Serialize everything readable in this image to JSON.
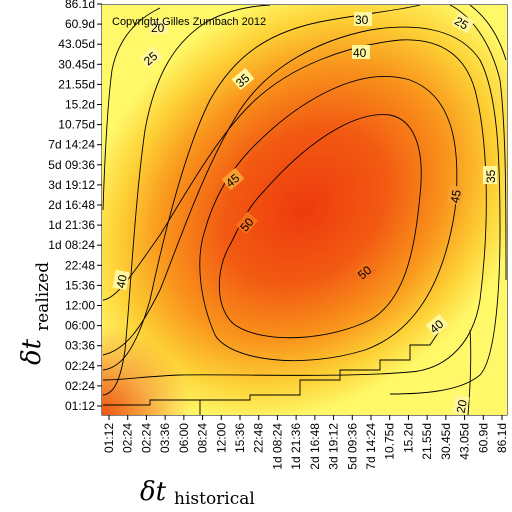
{
  "chart_data": {
    "type": "heatmap",
    "title": "",
    "copyright": "Copyright Gilles Zumbach 2012",
    "xlabel": {
      "main": "δt",
      "sub": "historical"
    },
    "ylabel": {
      "main": "δt",
      "sub": "realized"
    },
    "x_ticks": [
      "01:12",
      "02:24",
      "02:24",
      "03:36",
      "06:00",
      "08:24",
      "12:00",
      "15:36",
      "22:48",
      "1d 08:24",
      "1d 21:36",
      "2d 16:48",
      "3d 19:12",
      "5d 09:36",
      "7d 14:24",
      "10.75d",
      "15.2d",
      "21.55d",
      "30.45d",
      "43.05d",
      "60.9d",
      "86.1d"
    ],
    "y_ticks": [
      "01:12",
      "02:24",
      "02:24",
      "03:36",
      "06:00",
      "12:00",
      "15:36",
      "22:48",
      "1d 08:24",
      "1d 21:36",
      "2d 16:48",
      "3d 19:12",
      "5d 09:36",
      "7d 14:24",
      "10.75d",
      "15.2d",
      "21.55d",
      "30.45d",
      "43.05d",
      "60.9d",
      "86.1d"
    ],
    "contour_levels": [
      20,
      25,
      30,
      35,
      40,
      45,
      50
    ],
    "contour_labels": [
      {
        "text": "20"
      },
      {
        "text": "25"
      },
      {
        "text": "25"
      },
      {
        "text": "30"
      },
      {
        "text": "35"
      },
      {
        "text": "35"
      },
      {
        "text": "40"
      },
      {
        "text": "40"
      },
      {
        "text": "40"
      },
      {
        "text": "45"
      },
      {
        "text": "45"
      },
      {
        "text": "50"
      },
      {
        "text": "50"
      },
      {
        "text": "20"
      }
    ],
    "colors": {
      "low": "#fff96a",
      "mid": "#fca11c",
      "high": "#ee3a0e"
    }
  }
}
